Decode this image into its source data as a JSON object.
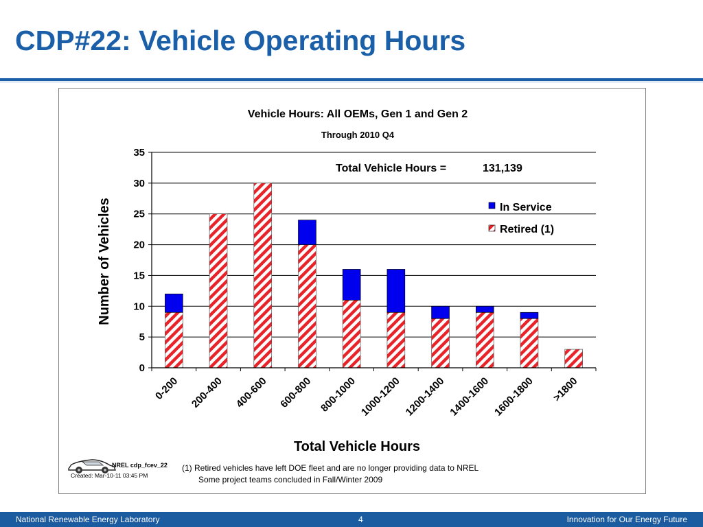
{
  "slide": {
    "title": "CDP#22: Vehicle Operating Hours",
    "footer_left": "National Renewable Energy Laboratory",
    "footer_page": "4",
    "footer_right": "Innovation for Our Energy Future"
  },
  "chart_data": {
    "type": "bar",
    "stacked": true,
    "title": "Vehicle Hours: All OEMs, Gen 1 and Gen 2",
    "subtitle": "Through 2010 Q4",
    "xlabel": "Total Vehicle Hours",
    "ylabel": "Number of Vehicles",
    "ylim": [
      0,
      35
    ],
    "yticks": [
      0,
      5,
      10,
      15,
      20,
      25,
      30,
      35
    ],
    "grid": true,
    "legend_position": "top-right",
    "categories": [
      "0-200",
      "200-400",
      "400-600",
      "600-800",
      "800-1000",
      "1000-1200",
      "1200-1400",
      "1400-1600",
      "1600-1800",
      ">1800"
    ],
    "series": [
      {
        "name": "Retired (1)",
        "values": [
          9,
          25,
          30,
          20,
          11,
          9,
          8,
          9,
          8,
          3
        ],
        "color": "#e8232a",
        "pattern": "diagonal-stripe"
      },
      {
        "name": "In Service",
        "values": [
          3,
          0,
          0,
          4,
          5,
          7,
          2,
          1,
          1,
          0
        ],
        "color": "#0000ee"
      }
    ],
    "annotation": {
      "label": "Total Vehicle Hours =",
      "value": "131,139"
    },
    "footnote_lines": [
      "(1) Retired vehicles have left DOE fleet and are no longer providing data to NREL",
      "Some project teams concluded in Fall/Winter 2009"
    ],
    "source_id": "NREL cdp_fcev_22",
    "created": "Created: Mar-10-11 03:45 PM"
  }
}
